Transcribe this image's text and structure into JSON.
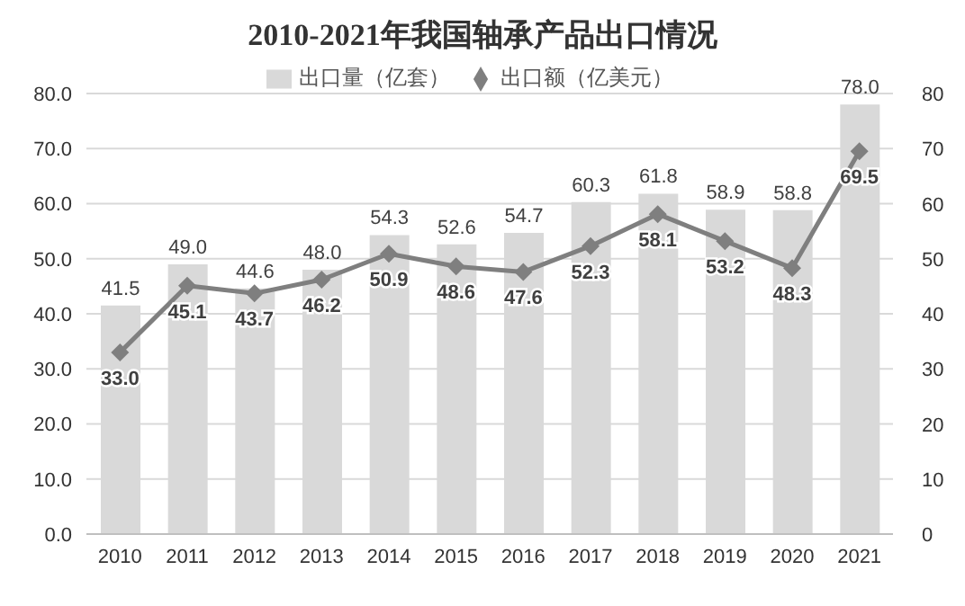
{
  "chart_data": {
    "type": "bar",
    "title": "2010-2021年我国轴承产品出口情况",
    "categories": [
      "2010",
      "2011",
      "2012",
      "2013",
      "2014",
      "2015",
      "2016",
      "2017",
      "2018",
      "2019",
      "2020",
      "2021"
    ],
    "series": [
      {
        "name": "出口量（亿套）",
        "color": "#d9d9d9",
        "values": [
          41.5,
          49.0,
          44.6,
          48.0,
          54.3,
          52.6,
          54.7,
          60.3,
          61.8,
          58.9,
          58.8,
          78.0
        ],
        "value_labels": [
          "41.5",
          "49.0",
          "44.6",
          "48.0",
          "54.3",
          "52.6",
          "54.7",
          "60.3",
          "61.8",
          "58.9",
          "58.8",
          "78.0"
        ]
      },
      {
        "name": "出口额（亿美元）",
        "type": "line",
        "axis": "y2",
        "color": "#7f7f7f",
        "values": [
          33.0,
          45.1,
          43.7,
          46.2,
          50.9,
          48.6,
          47.6,
          52.3,
          58.1,
          53.2,
          48.3,
          69.5
        ],
        "value_labels": [
          "33.0",
          "45.1",
          "43.7",
          "46.2",
          "50.9",
          "48.6",
          "47.6",
          "52.3",
          "58.1",
          "53.2",
          "48.3",
          "69.5"
        ]
      }
    ],
    "ylim": [
      0,
      80
    ],
    "yticks": [
      {
        "value": 0,
        "label": "0.0"
      },
      {
        "value": 10,
        "label": "10.0"
      },
      {
        "value": 20,
        "label": "20.0"
      },
      {
        "value": 30,
        "label": "30.0"
      },
      {
        "value": 40,
        "label": "40.0"
      },
      {
        "value": 50,
        "label": "50.0"
      },
      {
        "value": 60,
        "label": "60.0"
      },
      {
        "value": 70,
        "label": "70.0"
      },
      {
        "value": 80,
        "label": "80.0"
      }
    ],
    "y2lim": [
      0,
      80
    ],
    "y2ticks": [
      0,
      10,
      20,
      30,
      40,
      50,
      60,
      70,
      80
    ],
    "grid": "y",
    "legend": "top",
    "marker": "diamond",
    "line_style": "solid"
  }
}
